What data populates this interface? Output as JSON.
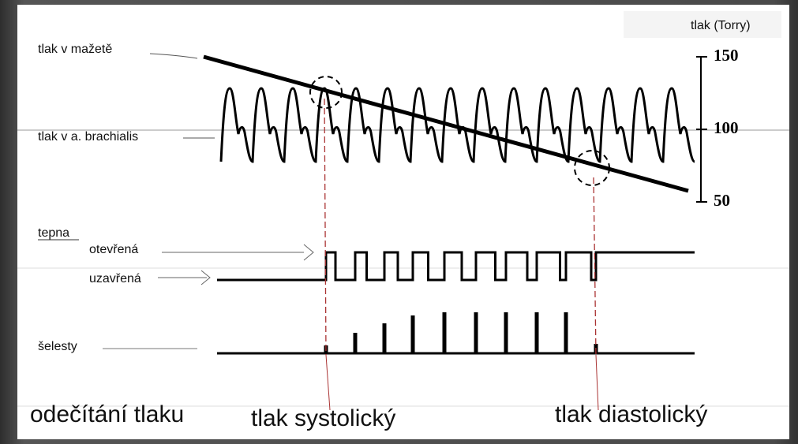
{
  "axis": {
    "label": "tlak (Torry)",
    "ticks": [
      150,
      100,
      50
    ]
  },
  "labels": {
    "cuff": "tlak v mažetě",
    "artery_pressure": "tlak v a. brachialis",
    "artery": "tepna",
    "open": "otevřená",
    "closed": "uzavřená",
    "sounds": "šelesty"
  },
  "footer": {
    "reading": "odečítání tlaku",
    "systolic": "tlak systolický",
    "diastolic": "tlak diastolický"
  }
}
